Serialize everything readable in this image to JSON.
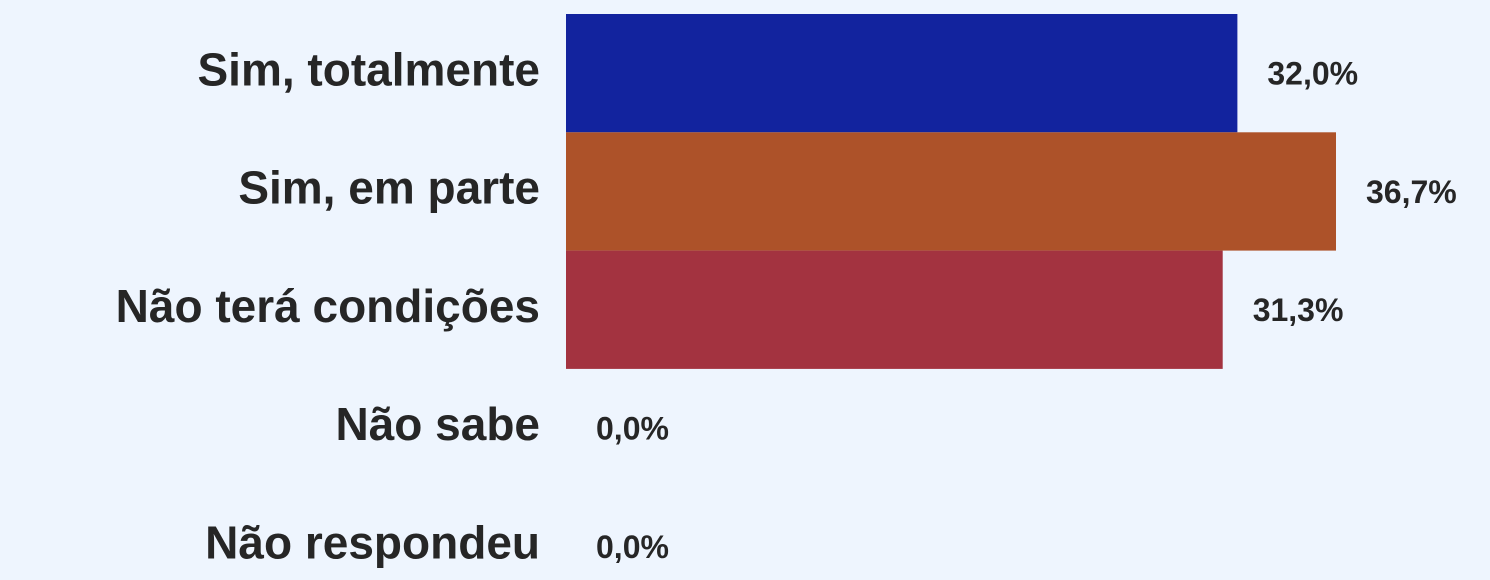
{
  "chart_data": {
    "type": "bar",
    "orientation": "horizontal",
    "categories": [
      "Sim, totalmente",
      "Sim, em parte",
      "Não terá condições",
      "Não sabe",
      "Não respondeu"
    ],
    "values": [
      32.0,
      36.7,
      31.3,
      0.0,
      0.0
    ],
    "value_labels": [
      "32,0%",
      "36,7%",
      "31,3%",
      "0,0%",
      "0,0%"
    ],
    "colors": [
      "#12239e",
      "#ad5229",
      "#a33340",
      "#a33340",
      "#a33340"
    ]
  }
}
